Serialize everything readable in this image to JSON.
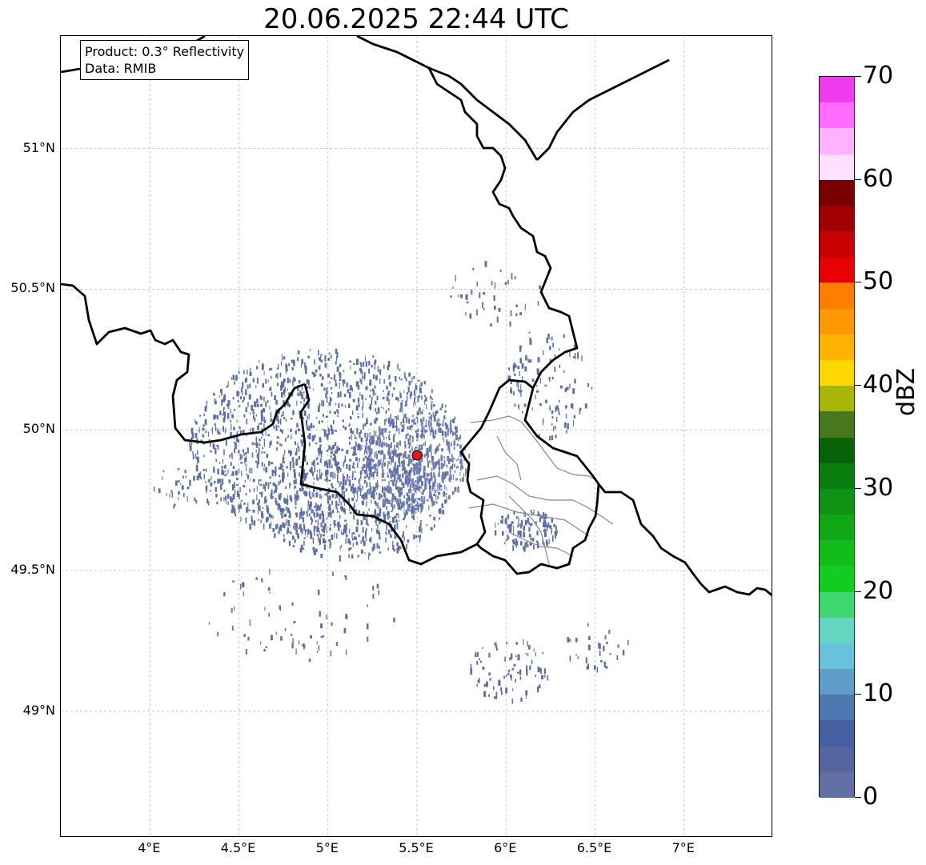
{
  "title": "20.06.2025 22:44 UTC",
  "info": {
    "product": "Product: 0.3° Reflectivity",
    "data": "Data: RMIB"
  },
  "map": {
    "lon_range": [
      3.5,
      7.5
    ],
    "lat_range": [
      48.55,
      51.4
    ],
    "lon_ticks": [
      4,
      4.5,
      5,
      5.5,
      6,
      6.5,
      7
    ],
    "lon_tick_labels": [
      "4°E",
      "4.5°E",
      "5°E",
      "5.5°E",
      "6°E",
      "6.5°E",
      "7°E"
    ],
    "lat_ticks": [
      49,
      49.5,
      50,
      50.5,
      51
    ],
    "lat_tick_labels": [
      "49°N",
      "49.5°N",
      "50°N",
      "50.5°N",
      "51°N"
    ],
    "gridlines": true,
    "radar_site": {
      "lon": 5.5,
      "lat": 49.91,
      "color": "#e8161b"
    }
  },
  "colorbar": {
    "unit": "dBZ",
    "min": 0,
    "max": 70,
    "tick_values": [
      0,
      10,
      20,
      30,
      40,
      50,
      60,
      70
    ],
    "tick_labels": [
      "0",
      "10",
      "20",
      "30",
      "40",
      "50",
      "60",
      "70"
    ],
    "colors": [
      "#6270a6",
      "#55669e",
      "#4460a0",
      "#4e79b0",
      "#5e9ec7",
      "#68c2dc",
      "#63d6c1",
      "#3ed66e",
      "#12cc1f",
      "#11bd19",
      "#0fa815",
      "#0e9412",
      "#0b7e10",
      "#076308",
      "#47781b",
      "#aab50a",
      "#ffd700",
      "#ffb300",
      "#ff9800",
      "#ff7d00",
      "#e80000",
      "#c80000",
      "#a00000",
      "#7a0000",
      "#ffe0ff",
      "#ffb2ff",
      "#ff6cff",
      "#ee3cee"
    ]
  }
}
